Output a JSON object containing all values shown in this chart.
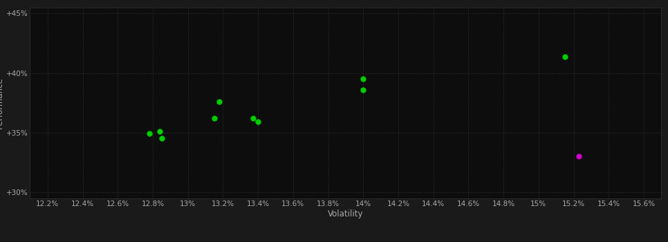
{
  "background_color": "#1a1a1a",
  "plot_bg_color": "#0d0d0d",
  "grid_color": "#333333",
  "xlabel": "Volatility",
  "ylabel": "Performance",
  "xlim": [
    0.121,
    0.157
  ],
  "ylim": [
    0.295,
    0.455
  ],
  "xticks": [
    0.122,
    0.124,
    0.126,
    0.128,
    0.13,
    0.132,
    0.134,
    0.136,
    0.138,
    0.14,
    0.142,
    0.144,
    0.146,
    0.148,
    0.15,
    0.152,
    0.154,
    0.156
  ],
  "yticks": [
    0.3,
    0.35,
    0.4,
    0.45
  ],
  "xtick_labels": [
    "12.2%",
    "12.4%",
    "12.6%",
    "12.8%",
    "13%",
    "13.2%",
    "13.4%",
    "13.6%",
    "13.8%",
    "14%",
    "14.2%",
    "14.4%",
    "14.6%",
    "14.8%",
    "15%",
    "15.2%",
    "15.4%",
    "15.6%"
  ],
  "ytick_labels": [
    "+30%",
    "+35%",
    "+40%",
    "+45%"
  ],
  "green_points": [
    [
      0.1278,
      0.3495
    ],
    [
      0.1284,
      0.351
    ],
    [
      0.1285,
      0.3455
    ],
    [
      0.1318,
      0.376
    ],
    [
      0.1315,
      0.362
    ],
    [
      0.1337,
      0.362
    ],
    [
      0.134,
      0.359
    ],
    [
      0.14,
      0.395
    ],
    [
      0.14,
      0.386
    ],
    [
      0.1515,
      0.4135
    ]
  ],
  "magenta_points": [
    [
      0.1523,
      0.3305
    ]
  ],
  "point_size": 25,
  "green_color": "#00cc00",
  "magenta_color": "#cc00cc",
  "tick_color": "#aaaaaa",
  "label_color": "#aaaaaa",
  "tick_fontsize": 7.5,
  "label_fontsize": 8.5
}
